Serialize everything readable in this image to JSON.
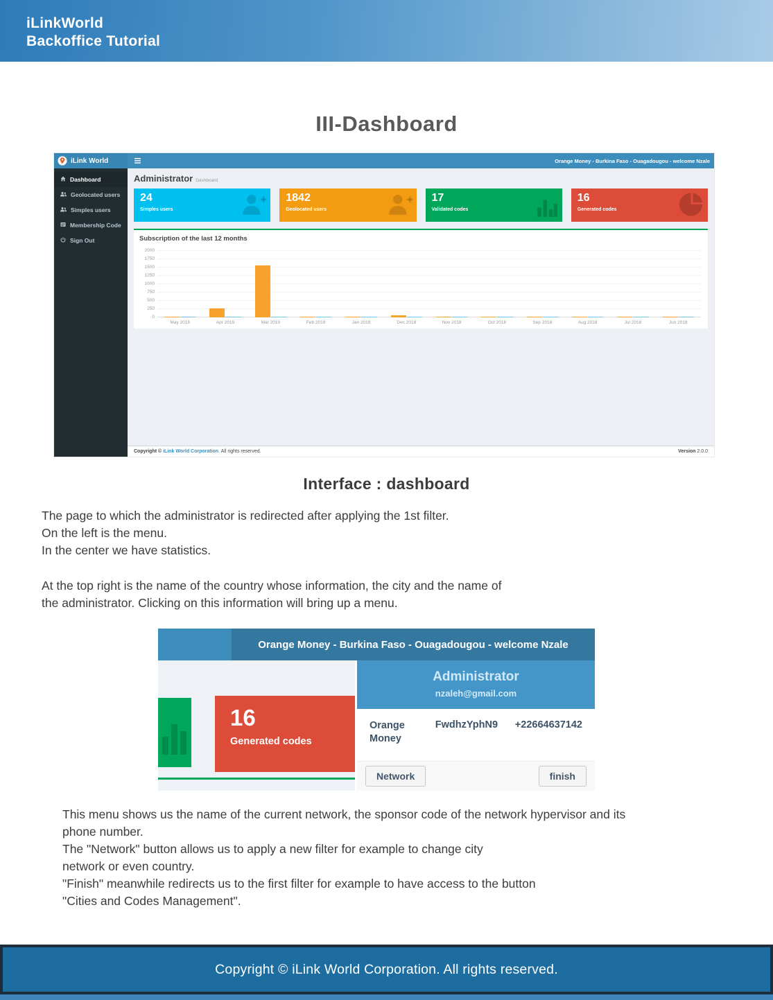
{
  "header": {
    "line1": "iLinkWorld",
    "line2": "Backoffice Tutorial"
  },
  "doc_title": "III-Dashboard",
  "dashboard_shot": {
    "brand": "iLink World",
    "topbar_user": "Orange Money - Burkina Faso - Ouagadougou - welcome Nzale",
    "sidebar_items": [
      {
        "label": "Dashboard",
        "icon": "home-icon",
        "active": true
      },
      {
        "label": "Geolocated users",
        "icon": "users-icon",
        "active": false
      },
      {
        "label": "Simples users",
        "icon": "users-icon",
        "active": false
      },
      {
        "label": "Membership Code",
        "icon": "membership-card-icon",
        "active": false
      },
      {
        "label": "Sign Out",
        "icon": "power-icon",
        "active": false
      }
    ],
    "page_title": "Administrator",
    "page_subtitle": "Dashboard",
    "stat_cards": [
      {
        "value": "24",
        "label": "Simples users",
        "color": "#00c0ef",
        "icon": "user-plus-icon"
      },
      {
        "value": "1842",
        "label": "Geolocated users",
        "color": "#f39c12",
        "icon": "user-plus-icon"
      },
      {
        "value": "17",
        "label": "Validated codes",
        "color": "#00a65a",
        "icon": "bar-chart-icon"
      },
      {
        "value": "16",
        "label": "Generated codes",
        "color": "#dd4b39",
        "icon": "pie-chart-icon"
      }
    ],
    "footer": {
      "copyright_prefix": "Copyright © ",
      "company": "iLink World Corporation",
      "copyright_suffix": ". All rights reserved.",
      "version_label": "Version",
      "version_value": "2.0.0"
    }
  },
  "chart_data": {
    "type": "bar",
    "title": "Subscription of the last 12 months",
    "categories": [
      "May 2019",
      "Apr 2019",
      "Mar 2019",
      "Feb 2019",
      "Jan 2019",
      "Dec 2018",
      "Nov 2018",
      "Oct 2018",
      "Sep 2018",
      "Aug 2018",
      "Jul 2018",
      "Jun 2018"
    ],
    "series": [
      {
        "name": "series-1",
        "color": "#f8a12c",
        "values": [
          5,
          270,
          1560,
          15,
          8,
          70,
          5,
          5,
          5,
          5,
          5,
          5
        ]
      },
      {
        "name": "series-2",
        "color": "#6ec6ef",
        "values": [
          15,
          15,
          25,
          15,
          15,
          12,
          10,
          10,
          10,
          10,
          10,
          10
        ]
      }
    ],
    "xlabel": "",
    "ylabel": "",
    "ylim": [
      0,
      2000
    ],
    "yticks": [
      0,
      250,
      500,
      750,
      1000,
      1250,
      1500,
      1750,
      2000
    ],
    "grid": true,
    "legend_position": "none"
  },
  "interface_heading": "Interface : dashboard",
  "para1": "The page to which the administrator is redirected after applying the 1st filter.\nOn the left is the menu.\nIn the center we have statistics.",
  "para2": "At the top right is the name of the country whose information, the city and the name of\n the administrator. Clicking on this information will bring up a menu.",
  "para3": "This menu shows us the name of the current network, the sponsor code of the network hypervisor and its\nphone number.\nThe \"Network\" button allows us to apply a new filter for example to change city\nnetwork or even country.\n\"Finish\" meanwhile redirects us to the first filter for example to have access to the button\n \"Cities and Codes Management\".",
  "menu_shot": {
    "topbar_user": "Orange Money - Burkina Faso - Ouagadougou - welcome Nzale",
    "generated_card": {
      "value": "16",
      "label": "Generated codes",
      "color": "#dd4b39"
    },
    "popup": {
      "title": "Administrator",
      "email": "nzaleh@gmail.com",
      "network_name": "Orange Money",
      "sponsor_code": "FwdhzYphN9",
      "phone": "+22664637142",
      "network_button": "Network",
      "finish_button": "finish"
    }
  },
  "page_footer": {
    "text": "Copyright © iLink World Corporation. All rights reserved."
  }
}
